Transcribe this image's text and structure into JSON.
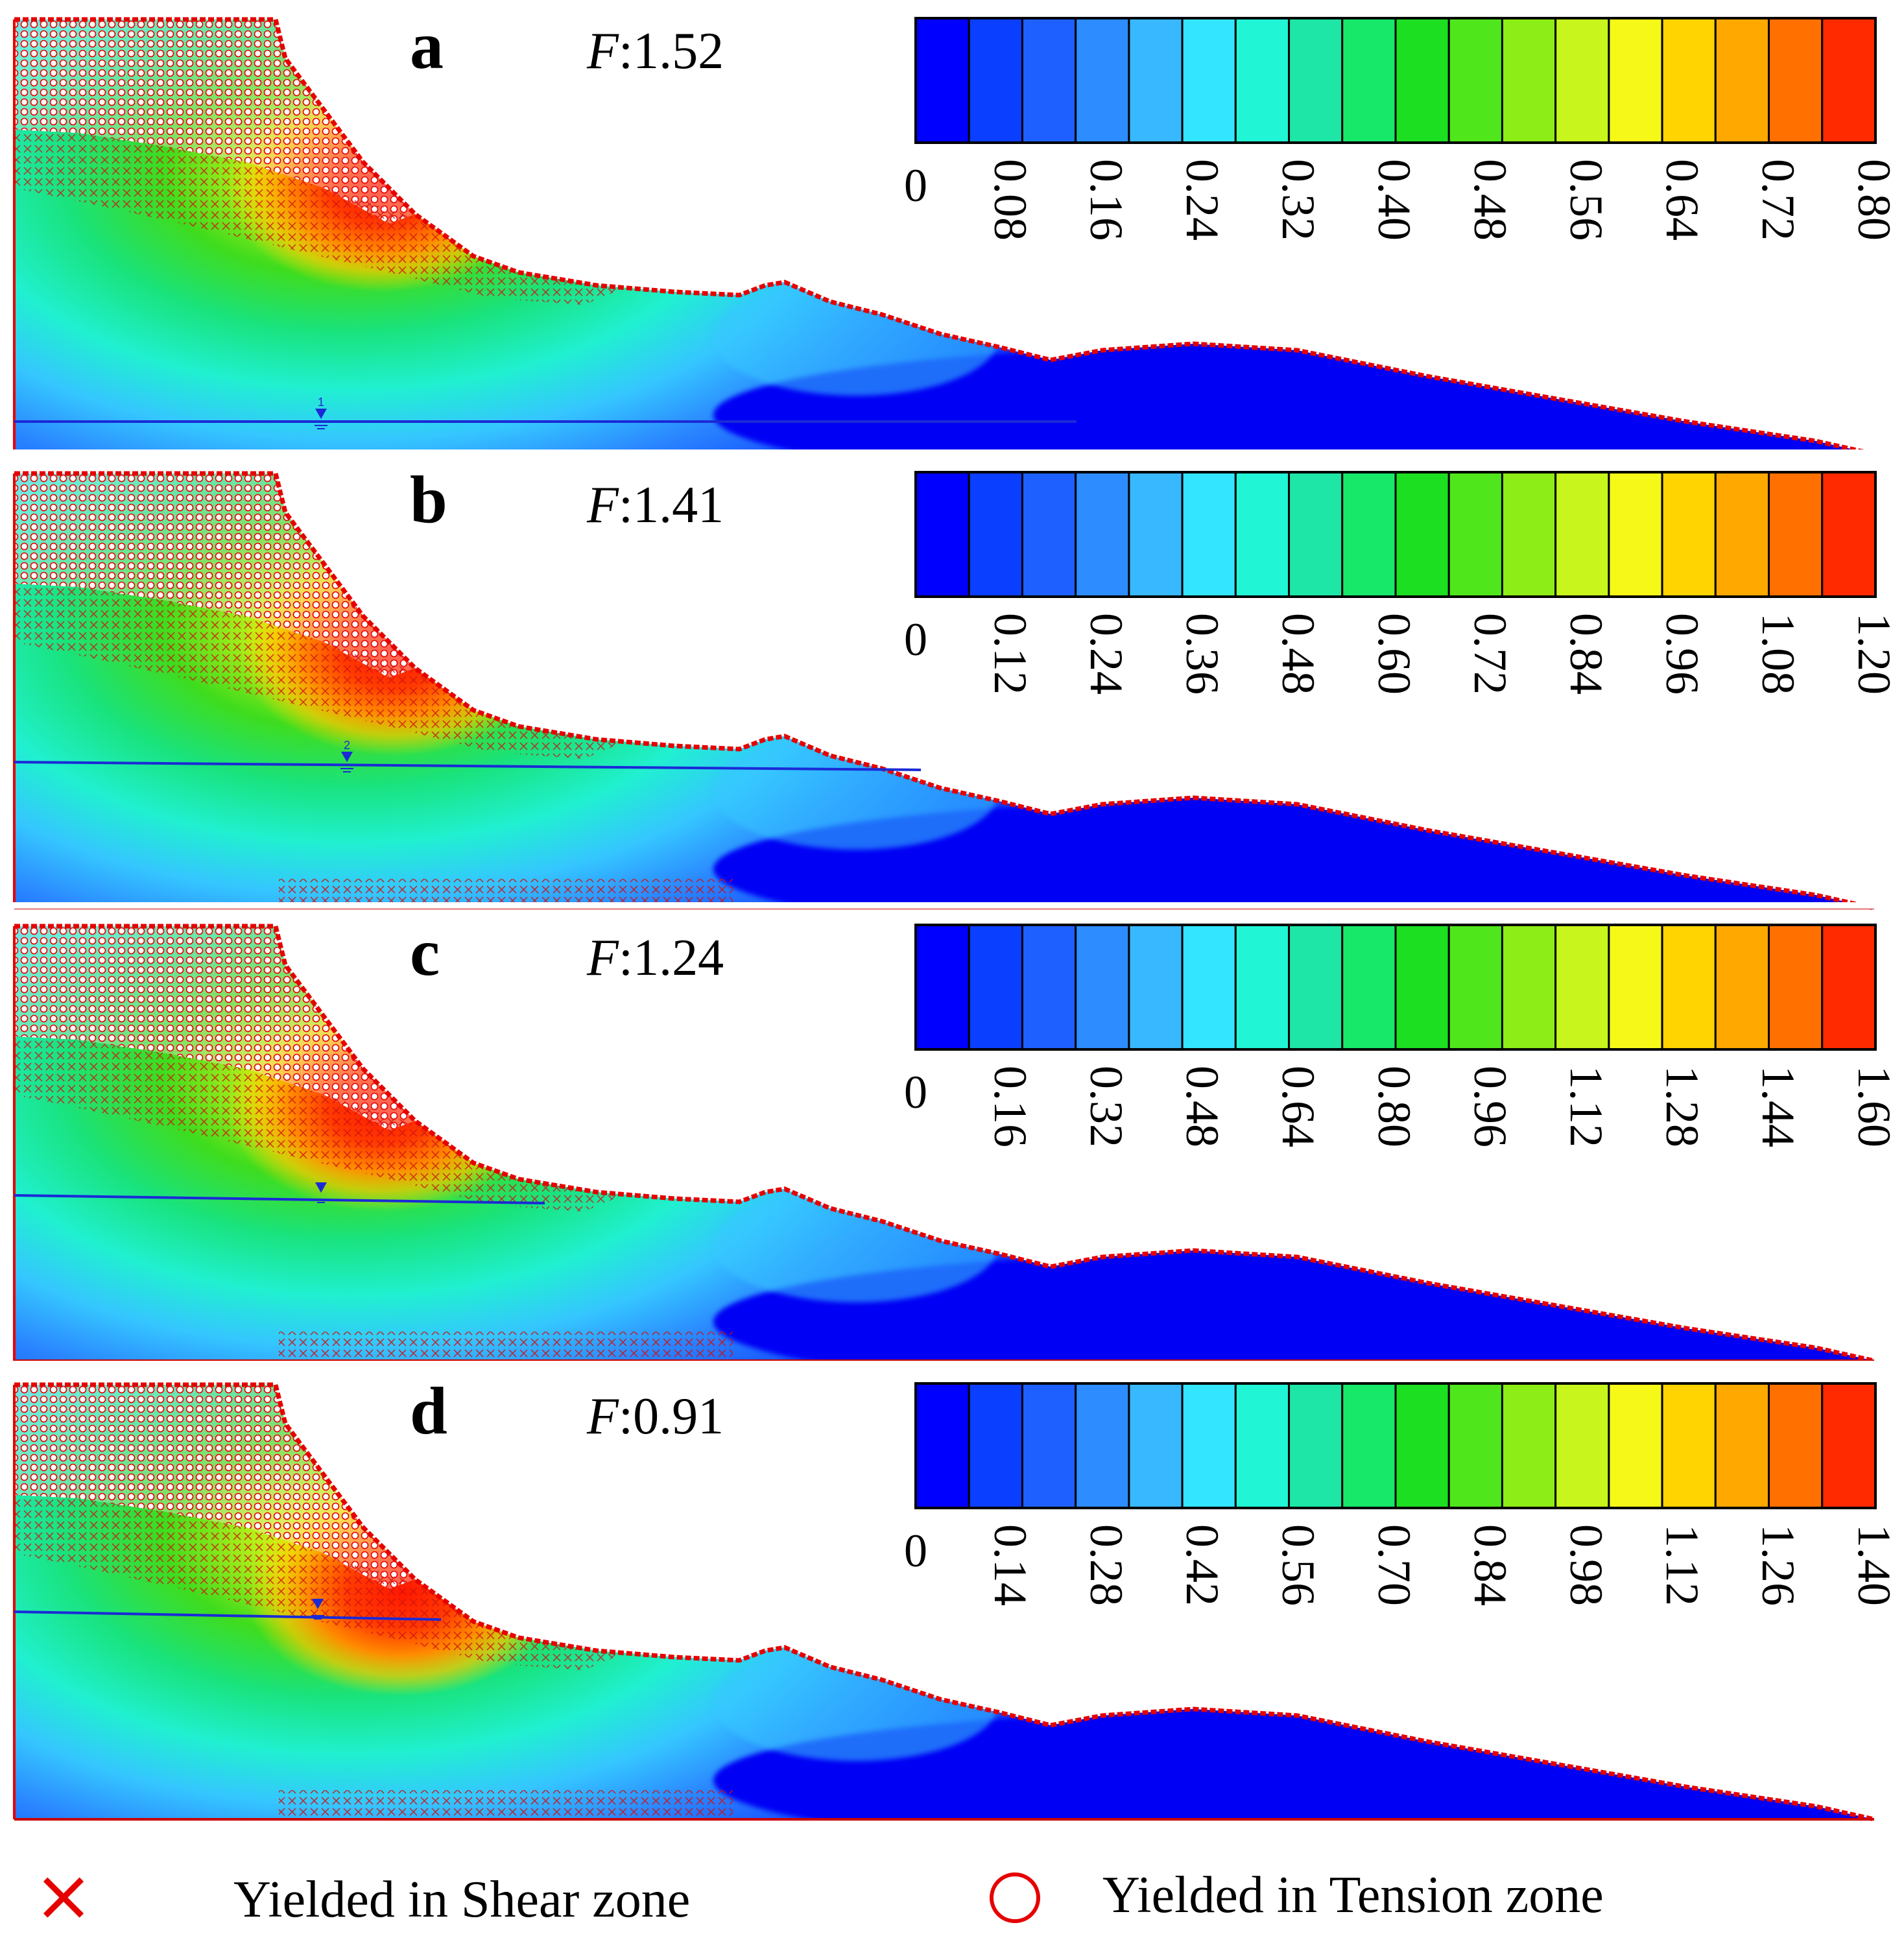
{
  "panels": [
    {
      "letter": "a",
      "factor": "1.52",
      "ticks": [
        "0",
        "0.08",
        "0.16",
        "0.24",
        "0.32",
        "0.40",
        "0.48",
        "0.56",
        "0.64",
        "0.72",
        "0.80"
      ],
      "water_level": "1"
    },
    {
      "letter": "b",
      "factor": "1.41",
      "ticks": [
        "0",
        "0.12",
        "0.24",
        "0.36",
        "0.48",
        "0.60",
        "0.72",
        "0.84",
        "0.96",
        "1.08",
        "1.20"
      ],
      "water_level": "2"
    },
    {
      "letter": "c",
      "factor": "1.24",
      "ticks": [
        "0",
        "0.16",
        "0.32",
        "0.48",
        "0.64",
        "0.80",
        "0.96",
        "1.12",
        "1.28",
        "1.44",
        "1.60"
      ],
      "water_level": ""
    },
    {
      "letter": "d",
      "factor": "0.91",
      "ticks": [
        "0",
        "0.14",
        "0.28",
        "0.42",
        "0.56",
        "0.70",
        "0.84",
        "0.98",
        "1.12",
        "1.26",
        "1.40"
      ],
      "water_level": ""
    }
  ],
  "factor_symbol": "F",
  "colorbar_colors": [
    "#0000ff",
    "#0b3fff",
    "#1e60ff",
    "#2d8cff",
    "#38b8ff",
    "#33e5ff",
    "#20f5d6",
    "#1de6a6",
    "#17e86a",
    "#1ddf22",
    "#50e61c",
    "#8ded16",
    "#c7f51c",
    "#f6f818",
    "#ffd400",
    "#ffa800",
    "#ff7000",
    "#ff2a00"
  ],
  "legend": {
    "shear_marker": "×",
    "shear_label": "Yielded in Shear zone",
    "tension_label": "Yielded in Tension zone"
  },
  "colors": {
    "shear": "#e60000",
    "tension": "#e60000",
    "water_table": "#1a2ad6"
  }
}
